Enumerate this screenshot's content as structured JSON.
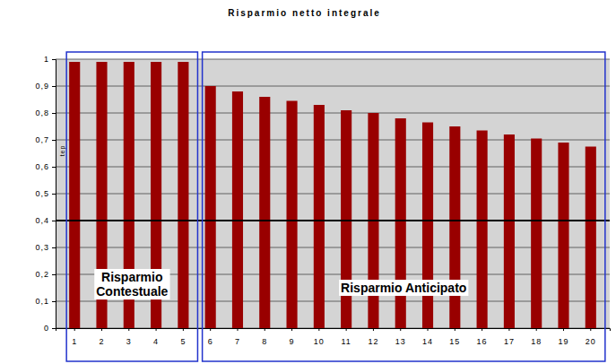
{
  "chart_data": {
    "type": "bar",
    "title": "Risparmio netto integrale",
    "y_label": "tep",
    "categories": [
      "1",
      "2",
      "3",
      "4",
      "5",
      "6",
      "7",
      "8",
      "9",
      "10",
      "11",
      "12",
      "13",
      "14",
      "15",
      "16",
      "17",
      "18",
      "19",
      "20"
    ],
    "values": [
      0.99,
      0.99,
      0.99,
      0.99,
      0.99,
      0.9,
      0.88,
      0.86,
      0.845,
      0.83,
      0.81,
      0.8,
      0.78,
      0.765,
      0.75,
      0.735,
      0.72,
      0.705,
      0.69,
      0.675
    ],
    "color": "#990000",
    "ylim": [
      0,
      1
    ],
    "yticks": [
      0,
      {
        "value": 0.1,
        "label": "0,1"
      },
      {
        "value": 0.2,
        "label": "0,2"
      },
      {
        "value": 0.3,
        "label": "0,3"
      },
      {
        "value": 0.4,
        "label": "0,4"
      },
      {
        "value": 0.5,
        "label": "0,5"
      },
      {
        "value": 0.6,
        "label": "0,6"
      },
      {
        "value": 0.7,
        "label": "0,7"
      },
      {
        "value": 0.8,
        "label": "0,8"
      },
      {
        "value": 0.9,
        "label": "0,9"
      },
      1
    ],
    "grid": true,
    "reference_line": 0.4,
    "annotations": [
      {
        "text": "Risparmio\nContestuale",
        "from": "1",
        "to": "5"
      },
      {
        "text": "Risparmio Anticipato",
        "from": "6",
        "to": "20"
      }
    ]
  }
}
